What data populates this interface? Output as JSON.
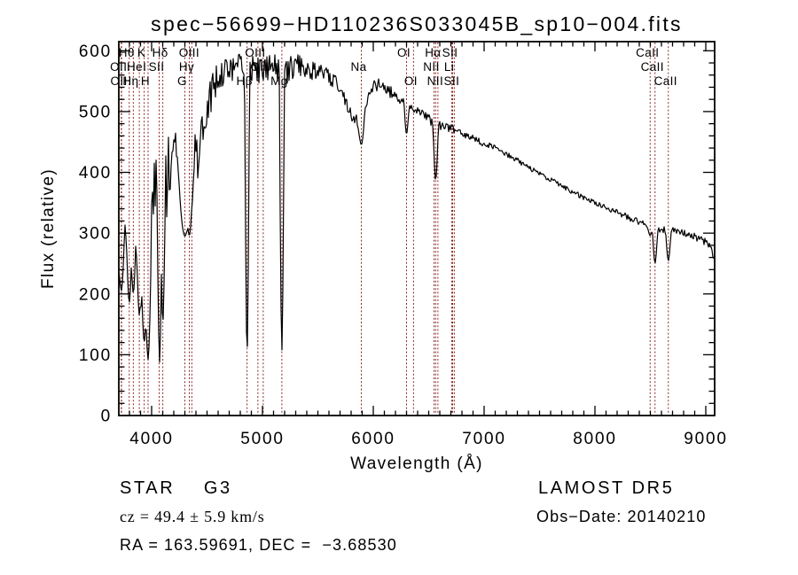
{
  "title": "spec−56699−HD110236S033045B_sp10−004.fits",
  "axes": {
    "xlabel": "Wavelength (Å)",
    "ylabel": "Flux (relative)"
  },
  "footer": {
    "class_label": "STAR    G3",
    "cz_label": "cz = 49.4 ± 5.9 km/s",
    "radec_label": "RA = 163.59691, DEC =  −3.68530",
    "survey_label": "LAMOST DR5",
    "obsdate_label": "Obs−Date: 20140210"
  },
  "chart_data": {
    "type": "line",
    "title": "spec−56699−HD110236S033045B_sp10−004.fits",
    "xlabel": "Wavelength (Å)",
    "ylabel": "Flux (relative)",
    "xlim": [
      3704,
      9080
    ],
    "ylim": [
      0,
      615
    ],
    "x_ticks": [
      4000,
      5000,
      6000,
      7000,
      8000,
      9000
    ],
    "y_ticks": [
      0,
      100,
      200,
      300,
      400,
      500,
      600
    ],
    "x_minor_step": 100,
    "y_minor_step": 20,
    "grid": false,
    "line_color": "#000000",
    "marker_line_color": "#8e2828",
    "background": "#ffffff",
    "spectral_lines": [
      {
        "wavelength": 3726,
        "label": "OII",
        "row": 2
      },
      {
        "wavelength": 3729,
        "label": "OII",
        "row": 3
      },
      {
        "wavelength": 3798,
        "label": "Hθ",
        "row": 1
      },
      {
        "wavelength": 3835,
        "label": "Hη",
        "row": 3
      },
      {
        "wavelength": 3889,
        "label": "HeI",
        "row": 2
      },
      {
        "wavelength": 3933,
        "label": "K",
        "row": 1
      },
      {
        "wavelength": 3968,
        "label": "H",
        "row": 3
      },
      {
        "wavelength": 4068,
        "label": "SII",
        "row": 2
      },
      {
        "wavelength": 4101,
        "label": "Hδ",
        "row": 1
      },
      {
        "wavelength": 4300,
        "label": "G",
        "row": 3
      },
      {
        "wavelength": 4340,
        "label": "Hγ",
        "row": 2
      },
      {
        "wavelength": 4363,
        "label": "OIII",
        "row": 1
      },
      {
        "wavelength": 4861,
        "label": "Hβ",
        "row": 3
      },
      {
        "wavelength": 4959,
        "label": "OIII",
        "row": 1
      },
      {
        "wavelength": 5007,
        "label": "OIII",
        "row": 2
      },
      {
        "wavelength": 5175,
        "label": "Mg",
        "row": 3
      },
      {
        "wavelength": 5892,
        "label": "Na",
        "row": 2
      },
      {
        "wavelength": 6300,
        "label": "OI",
        "row": 1
      },
      {
        "wavelength": 6363,
        "label": "OI",
        "row": 3
      },
      {
        "wavelength": 6548,
        "label": "NII",
        "row": 2
      },
      {
        "wavelength": 6563,
        "label": "Hα",
        "row": 1
      },
      {
        "wavelength": 6583,
        "label": "NII",
        "row": 3
      },
      {
        "wavelength": 6708,
        "label": "Li",
        "row": 2
      },
      {
        "wavelength": 6716,
        "label": "SII",
        "row": 1
      },
      {
        "wavelength": 6731,
        "label": "SII",
        "row": 3
      },
      {
        "wavelength": 8498,
        "label": "CaII",
        "row": 1
      },
      {
        "wavelength": 8542,
        "label": "CaII",
        "row": 2
      },
      {
        "wavelength": 8662,
        "label": "CaII",
        "row": 3
      }
    ],
    "spectrum_model": {
      "seed": 12345,
      "continuum_anchors": [
        [
          3705,
          250
        ],
        [
          3725,
          275
        ],
        [
          3750,
          300
        ],
        [
          3775,
          295
        ],
        [
          3805,
          285
        ],
        [
          3830,
          300
        ],
        [
          3860,
          315
        ],
        [
          3895,
          280
        ],
        [
          3925,
          255
        ],
        [
          3955,
          235
        ],
        [
          3985,
          290
        ],
        [
          4015,
          360
        ],
        [
          4045,
          410
        ],
        [
          4075,
          405
        ],
        [
          4110,
          420
        ],
        [
          4150,
          420
        ],
        [
          4200,
          428
        ],
        [
          4250,
          435
        ],
        [
          4285,
          390
        ],
        [
          4320,
          360
        ],
        [
          4360,
          395
        ],
        [
          4400,
          440
        ],
        [
          4440,
          465
        ],
        [
          4480,
          495
        ],
        [
          4520,
          520
        ],
        [
          4570,
          545
        ],
        [
          4620,
          565
        ],
        [
          4680,
          572
        ],
        [
          4740,
          570
        ],
        [
          4800,
          578
        ],
        [
          4860,
          572
        ],
        [
          4920,
          570
        ],
        [
          4980,
          565
        ],
        [
          5040,
          572
        ],
        [
          5100,
          578
        ],
        [
          5160,
          560
        ],
        [
          5220,
          565
        ],
        [
          5280,
          575
        ],
        [
          5340,
          578
        ],
        [
          5400,
          572
        ],
        [
          5460,
          568
        ],
        [
          5520,
          562
        ],
        [
          5580,
          558
        ],
        [
          5640,
          552
        ],
        [
          5700,
          540
        ],
        [
          5760,
          515
        ],
        [
          5820,
          490
        ],
        [
          5865,
          478
        ],
        [
          5910,
          495
        ],
        [
          5950,
          525
        ],
        [
          6000,
          540
        ],
        [
          6060,
          545
        ],
        [
          6120,
          538
        ],
        [
          6180,
          528
        ],
        [
          6240,
          518
        ],
        [
          6300,
          508
        ],
        [
          6360,
          502
        ],
        [
          6420,
          498
        ],
        [
          6480,
          490
        ],
        [
          6540,
          483
        ],
        [
          6600,
          478
        ],
        [
          6660,
          475
        ],
        [
          6720,
          470
        ],
        [
          6800,
          463
        ],
        [
          6900,
          455
        ],
        [
          7000,
          448
        ],
        [
          7100,
          440
        ],
        [
          7200,
          430
        ],
        [
          7300,
          420
        ],
        [
          7400,
          408
        ],
        [
          7500,
          398
        ],
        [
          7600,
          388
        ],
        [
          7700,
          378
        ],
        [
          7800,
          368
        ],
        [
          7900,
          358
        ],
        [
          8000,
          350
        ],
        [
          8100,
          342
        ],
        [
          8200,
          334
        ],
        [
          8300,
          326
        ],
        [
          8400,
          318
        ],
        [
          8500,
          310
        ],
        [
          8600,
          306
        ],
        [
          8700,
          304
        ],
        [
          8800,
          300
        ],
        [
          8900,
          294
        ],
        [
          8960,
          290
        ],
        [
          9010,
          284
        ],
        [
          9050,
          272
        ],
        [
          9078,
          262
        ]
      ],
      "noise_anchors": [
        [
          3705,
          65
        ],
        [
          3760,
          60
        ],
        [
          3820,
          55
        ],
        [
          3880,
          55
        ],
        [
          3940,
          50
        ],
        [
          4000,
          45
        ],
        [
          4080,
          45
        ],
        [
          4160,
          40
        ],
        [
          4240,
          38
        ],
        [
          4320,
          34
        ],
        [
          4400,
          32
        ],
        [
          4480,
          30
        ],
        [
          4560,
          28
        ],
        [
          4650,
          26
        ],
        [
          4750,
          24
        ],
        [
          4850,
          24
        ],
        [
          4950,
          23
        ],
        [
          5050,
          22
        ],
        [
          5150,
          22
        ],
        [
          5250,
          20
        ],
        [
          5350,
          19
        ],
        [
          5450,
          17
        ],
        [
          5550,
          16
        ],
        [
          5650,
          14
        ],
        [
          5750,
          13
        ],
        [
          5850,
          12
        ],
        [
          5950,
          11
        ],
        [
          6050,
          10
        ],
        [
          6150,
          10
        ],
        [
          6250,
          9
        ],
        [
          6350,
          9
        ],
        [
          6450,
          8
        ],
        [
          6550,
          8
        ],
        [
          6700,
          7
        ],
        [
          6900,
          6
        ],
        [
          7100,
          5
        ],
        [
          7400,
          4
        ],
        [
          7700,
          4
        ],
        [
          8000,
          4
        ],
        [
          8300,
          5
        ],
        [
          8600,
          5
        ],
        [
          8900,
          6
        ],
        [
          9078,
          8
        ]
      ],
      "absorption_dips": [
        [
          3727,
          205,
          1.6
        ],
        [
          3798,
          185,
          1.5
        ],
        [
          3835,
          200,
          1.5
        ],
        [
          3889,
          165,
          1.6
        ],
        [
          3933,
          120,
          1.8
        ],
        [
          3968,
          92,
          1.8
        ],
        [
          4072,
          88,
          1.5
        ],
        [
          4101,
          150,
          1.5
        ],
        [
          4300,
          295,
          4
        ],
        [
          4340,
          295,
          2
        ],
        [
          4861,
          95,
          1.3
        ],
        [
          5175,
          105,
          1.3
        ],
        [
          5892,
          445,
          1.8
        ],
        [
          6300,
          462,
          1.2
        ],
        [
          6563,
          386,
          1.4
        ],
        [
          8498,
          296,
          1.4
        ],
        [
          8542,
          250,
          1.4
        ],
        [
          8662,
          254,
          1.4
        ]
      ],
      "end_drop_wavelength": 9078
    }
  }
}
